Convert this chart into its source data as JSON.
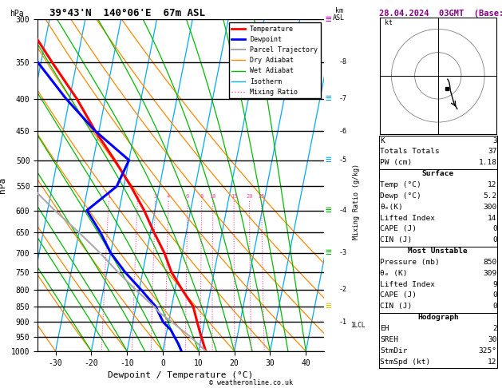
{
  "title_left": "39°43'N  140°06'E  67m ASL",
  "title_right": "28.04.2024  03GMT  (Base: 18)",
  "xlabel": "Dewpoint / Temperature (°C)",
  "ylabel_left": "hPa",
  "xmin": -35,
  "xmax": 45,
  "pmin": 300,
  "pmax": 1000,
  "skew_factor": 35,
  "pressure_levels": [
    300,
    350,
    400,
    450,
    500,
    550,
    600,
    650,
    700,
    750,
    800,
    850,
    900,
    950,
    1000
  ],
  "temperature_profile": {
    "pressure": [
      1000,
      975,
      950,
      925,
      900,
      850,
      800,
      750,
      700,
      650,
      600,
      550,
      500,
      450,
      400,
      350,
      300
    ],
    "temp": [
      12,
      11,
      10,
      9,
      8,
      6,
      2,
      -2,
      -5,
      -9,
      -13,
      -18,
      -24,
      -31,
      -38,
      -47,
      -57
    ]
  },
  "dewpoint_profile": {
    "pressure": [
      1000,
      975,
      950,
      925,
      900,
      850,
      800,
      750,
      700,
      650,
      600,
      550,
      500,
      450,
      400,
      350,
      300
    ],
    "dewp": [
      5.2,
      4.0,
      2.5,
      1.0,
      -1.5,
      -4.5,
      -9.5,
      -15,
      -20,
      -24,
      -29,
      -22,
      -20,
      -31,
      -41,
      -51,
      -57
    ]
  },
  "parcel_profile": {
    "pressure": [
      1000,
      950,
      900,
      870,
      850,
      800,
      750,
      700,
      650,
      600,
      550,
      500,
      450,
      400,
      350,
      300
    ],
    "temp": [
      12,
      7,
      1,
      -3,
      -5,
      -11,
      -17,
      -23,
      -30,
      -38,
      -46,
      -54,
      -61,
      -68,
      -73,
      -78
    ]
  },
  "colors": {
    "temperature": "#ff0000",
    "dewpoint": "#0000ff",
    "parcel": "#aaaaaa",
    "dry_adiabat": "#ff8800",
    "wet_adiabat": "#00bb00",
    "isotherm": "#00aaff",
    "mixing_ratio": "#ff44aa",
    "isobar": "#000000"
  },
  "legend_entries": [
    {
      "label": "Temperature",
      "color": "#ff0000",
      "lw": 2,
      "ls": "-"
    },
    {
      "label": "Dewpoint",
      "color": "#0000ff",
      "lw": 2,
      "ls": "-"
    },
    {
      "label": "Parcel Trajectory",
      "color": "#aaaaaa",
      "lw": 1.5,
      "ls": "-"
    },
    {
      "label": "Dry Adiabat",
      "color": "#ff8800",
      "lw": 1,
      "ls": "-"
    },
    {
      "label": "Wet Adiabat",
      "color": "#00bb00",
      "lw": 1,
      "ls": "-"
    },
    {
      "label": "Isotherm",
      "color": "#00aaff",
      "lw": 1,
      "ls": "-"
    },
    {
      "label": "Mixing Ratio",
      "color": "#ff44aa",
      "lw": 1,
      "ls": ":"
    }
  ],
  "mixing_ratios": [
    1,
    2,
    3,
    4,
    6,
    8,
    10,
    15,
    20,
    25
  ],
  "km_pressures": [
    350,
    400,
    450,
    500,
    550,
    600,
    700,
    800,
    900
  ],
  "km_labels": [
    "8",
    "7",
    "6",
    "5",
    "",
    "4",
    "3",
    "2",
    "1"
  ],
  "lcl_pressure": 910,
  "wind_barb_pressures": [
    300,
    400,
    500,
    600,
    700,
    850
  ],
  "wind_barb_colors": [
    "#cc00cc",
    "#00aaff",
    "#00aaff",
    "#00bb00",
    "#00bb00",
    "#cccc00"
  ],
  "info_K": 3,
  "info_TT": 37,
  "info_PW": 1.18,
  "surf_temp": 12,
  "surf_dewp": 5.2,
  "surf_theta_e": 300,
  "surf_li": 14,
  "surf_cape": 0,
  "surf_cin": 0,
  "mu_pressure": 850,
  "mu_theta_e": 309,
  "mu_li": 9,
  "mu_cape": 0,
  "mu_cin": 0,
  "hodo_eh": 2,
  "hodo_sreh": 30,
  "hodo_stmdir": 325,
  "hodo_stmspd": 12,
  "copyright": "© weatheronline.co.uk"
}
